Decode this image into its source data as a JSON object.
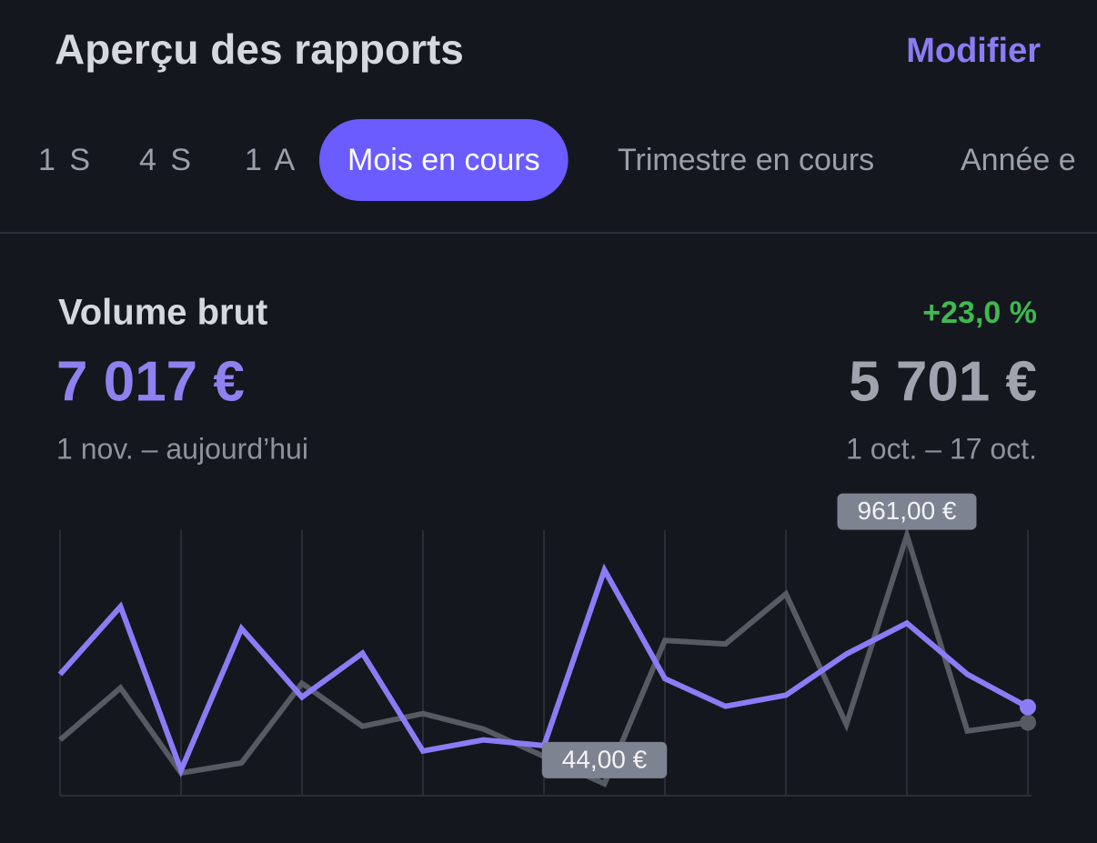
{
  "header": {
    "title": "Aperçu des rapports",
    "action": "Modifier"
  },
  "tabs": {
    "items": [
      "1 S",
      "4 S",
      "1 A",
      "Mois en cours",
      "Trimestre en cours",
      "Année e"
    ],
    "active": 3
  },
  "metric": {
    "title": "Volume brut",
    "change": "+23,0 %",
    "current_value": "7 017 €",
    "previous_value": "5 701 €",
    "current_period": "1 nov. – aujourd’hui",
    "previous_period": "1 oct. – 17 oct."
  },
  "chart_data": {
    "type": "line",
    "categories": [
      null,
      null,
      null,
      null,
      null,
      null,
      null,
      null,
      null,
      null,
      null,
      null,
      null,
      null,
      null,
      null,
      null
    ],
    "ylim": [
      0,
      980
    ],
    "grid": true,
    "series": [
      {
        "name": null,
        "color": "#8b7cf6",
        "values": [
          448,
          698,
          94,
          617,
          364,
          526,
          165,
          206,
          185,
          833,
          432,
          330,
          371,
          523,
          637,
          448,
          327
        ]
      },
      {
        "name": null,
        "color": "#565a63",
        "values": [
          206,
          398,
          84,
          121,
          415,
          256,
          303,
          246,
          145,
          44,
          573,
          560,
          745,
          263,
          961,
          239,
          270
        ],
        "value_labels": [
          null,
          null,
          null,
          null,
          null,
          null,
          null,
          null,
          null,
          "44,00 €",
          null,
          null,
          null,
          null,
          "961,00 €",
          null,
          null
        ]
      }
    ]
  }
}
